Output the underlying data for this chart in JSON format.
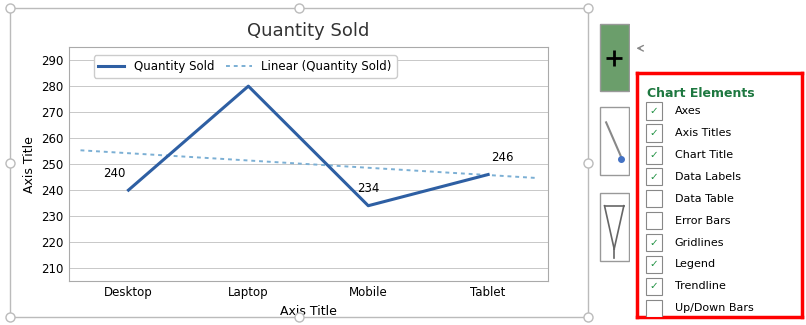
{
  "title": "Quantity Sold",
  "xlabel": "Axis Title",
  "ylabel": "Axis Title",
  "categories": [
    "Desktop",
    "Laptop",
    "Mobile",
    "Tablet"
  ],
  "values": [
    240,
    280,
    234,
    246
  ],
  "ylim": [
    205,
    295
  ],
  "yticks": [
    210,
    220,
    230,
    240,
    250,
    260,
    270,
    280,
    290
  ],
  "line_color": "#2E5FA3",
  "trendline_color": "#7BAFD4",
  "legend_label_main": "Quantity Sold",
  "legend_label_trend": "Linear (Quantity Sold)",
  "bg_color": "#FFFFFF",
  "plot_bg_color": "#FFFFFF",
  "grid_color": "#C8C8C8",
  "border_color": "#AAAAAA",
  "outer_border_color": "#BBBBBB",
  "title_fontsize": 13,
  "axis_label_fontsize": 9,
  "tick_fontsize": 8.5,
  "data_label_fontsize": 8.5,
  "panel_bg": "#FFFFFF",
  "right_panel_border_color": "#FF0000",
  "right_panel_title": "Chart Elements",
  "right_panel_title_color": "#1E7840",
  "right_panel_items": [
    {
      "label": "Axes",
      "checked": true
    },
    {
      "label": "Axis Titles",
      "checked": true
    },
    {
      "label": "Chart Title",
      "checked": true
    },
    {
      "label": "Data Labels",
      "checked": true
    },
    {
      "label": "Data Table",
      "checked": false
    },
    {
      "label": "Error Bars",
      "checked": false
    },
    {
      "label": "Gridlines",
      "checked": true
    },
    {
      "label": "Legend",
      "checked": true
    },
    {
      "label": "Trendline",
      "checked": true
    },
    {
      "label": "Up/Down Bars",
      "checked": false
    }
  ],
  "icon_plus_color": "#6B9E6B",
  "icon_border_color": "#999999",
  "checkmark_color": "#1E9040",
  "checkbox_border_color": "#888888"
}
